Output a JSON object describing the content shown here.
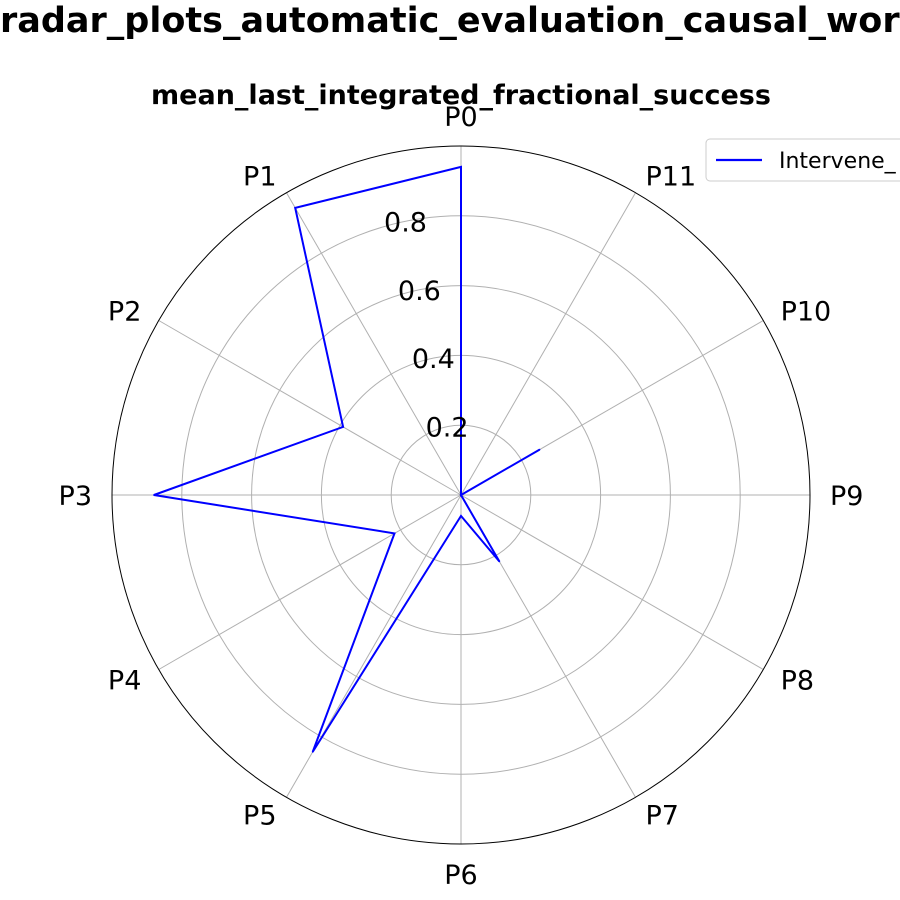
{
  "header": {
    "suptitle": "radar_plots_automatic_evaluation_causal_world",
    "subtitle": "mean_last_integrated_fractional_success"
  },
  "chart_data": {
    "type": "radar",
    "title": "mean_last_integrated_fractional_success",
    "categories": [
      "P0",
      "P1",
      "P2",
      "P3",
      "P4",
      "P5",
      "P6",
      "P7",
      "P8",
      "P9",
      "P10",
      "P11"
    ],
    "rlim": [
      0,
      1.0
    ],
    "rticks": [
      0.2,
      0.4,
      0.6,
      0.8
    ],
    "rtick_labels": [
      "0.2",
      "0.4",
      "0.6",
      "0.8"
    ],
    "grid": true,
    "legend": "top-right",
    "series": [
      {
        "name": "Intervene_",
        "color": "#0000ff",
        "values": [
          0.94,
          0.95,
          0.39,
          0.88,
          0.22,
          0.85,
          0.06,
          0.22,
          0.0,
          0.0,
          0.26,
          0.0
        ]
      }
    ]
  }
}
